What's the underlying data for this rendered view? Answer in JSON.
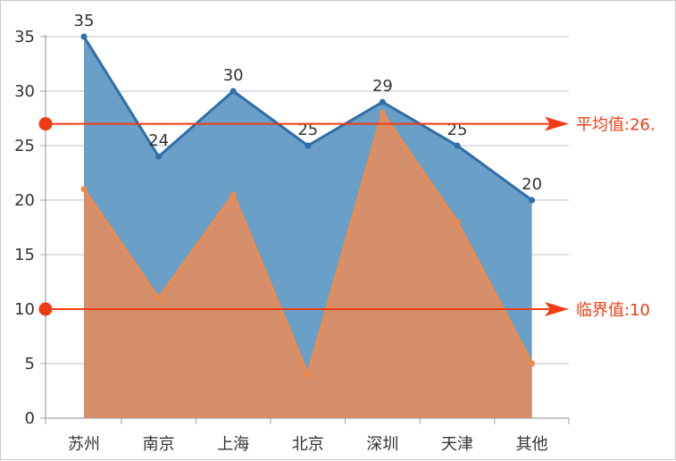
{
  "chart_data": {
    "type": "area",
    "categories": [
      "苏州",
      "南京",
      "上海",
      "北京",
      "深圳",
      "天津",
      "其他"
    ],
    "series": [
      {
        "values": [
          35,
          24,
          30,
          25,
          29,
          25,
          20
        ],
        "color": "#2f6ea8",
        "fill": "#6a9fc7"
      },
      {
        "values": [
          21,
          11,
          20.5,
          4,
          28,
          18,
          5
        ],
        "color": "#f08a4b",
        "fill": "#d48e6a"
      }
    ],
    "data_labels": [
      "35",
      "24",
      "30",
      "25",
      "29",
      "25",
      "20"
    ],
    "ylim": [
      0,
      35
    ],
    "yticks": [
      0,
      5,
      10,
      15,
      20,
      25,
      30,
      35
    ],
    "ytick_labels": [
      "0",
      "5",
      "10",
      "15",
      "20",
      "25",
      "30",
      "35"
    ],
    "grid": true,
    "reference_lines": [
      {
        "value": 27,
        "label": "平均值:26.",
        "color": "#f03c14"
      },
      {
        "value": 10,
        "label": "临界值:10",
        "color": "#f03c14"
      }
    ]
  }
}
